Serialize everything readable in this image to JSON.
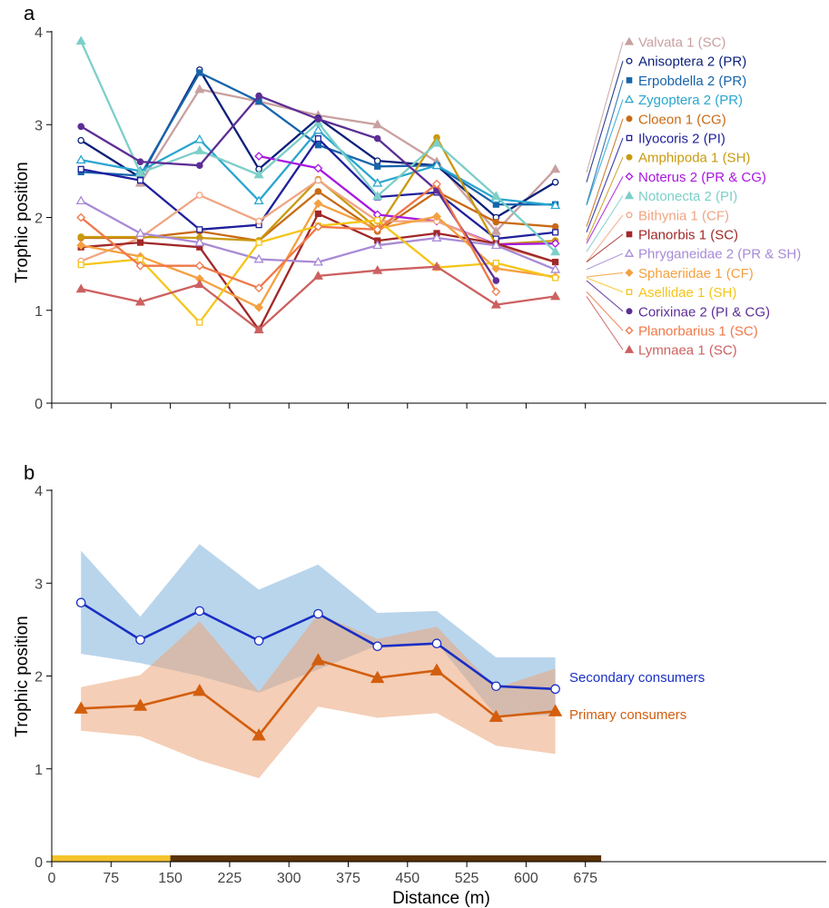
{
  "chart_data": [
    {
      "panel": "a",
      "type": "line",
      "ylabel": "Trophic position",
      "ylim": [
        0,
        4
      ],
      "yticks": [
        "0",
        "1",
        "2",
        "3",
        "4"
      ],
      "x": [
        37,
        112,
        187,
        262,
        337,
        412,
        487,
        562,
        637
      ],
      "series": [
        {
          "name": "Valvata 1 (SC)",
          "color": "#c9a0a0",
          "marker": "triangle-filled",
          "values": [
            null,
            2.37,
            3.38,
            3.25,
            3.1,
            3.0,
            2.6,
            1.85,
            2.52
          ]
        },
        {
          "name": "Anisoptera 2 (PR)",
          "color": "#0b1f7a",
          "marker": "circle-open",
          "values": [
            2.83,
            2.43,
            3.59,
            2.52,
            3.07,
            2.61,
            2.56,
            2.0,
            2.38
          ]
        },
        {
          "name": "Erpobdella 2 (PR)",
          "color": "#1764ab",
          "marker": "square-filled",
          "values": [
            2.49,
            2.45,
            3.56,
            3.25,
            2.78,
            2.55,
            2.56,
            2.14,
            2.14
          ]
        },
        {
          "name": "Zygoptera 2 (PR)",
          "color": "#2aa6cf",
          "marker": "triangle-open",
          "values": [
            2.62,
            2.5,
            2.84,
            2.18,
            2.94,
            2.37,
            2.56,
            2.2,
            2.13
          ]
        },
        {
          "name": "Cloeon 1 (CG)",
          "color": "#c86a14",
          "marker": "circle-filled",
          "values": [
            1.78,
            1.78,
            1.85,
            1.75,
            2.28,
            1.85,
            2.28,
            1.95,
            1.9
          ]
        },
        {
          "name": "Ilyocoris 2 (PI)",
          "color": "#1f1f9c",
          "marker": "square-open",
          "values": [
            2.52,
            2.4,
            1.87,
            1.92,
            2.85,
            2.22,
            2.27,
            1.77,
            1.84
          ]
        },
        {
          "name": "Amphipoda 1 (SH)",
          "color": "#c99a10",
          "marker": "circle-filled",
          "values": [
            1.79,
            1.79,
            1.78,
            1.75,
            2.41,
            1.88,
            2.86,
            1.71,
            1.75
          ]
        },
        {
          "name": "Noterus 2 (PR & CG)",
          "color": "#a818e0",
          "marker": "diamond-open",
          "values": [
            null,
            null,
            null,
            2.66,
            2.53,
            2.03,
            1.96,
            1.71,
            1.72
          ]
        },
        {
          "name": "Notonecta 2 (PI)",
          "color": "#7ccfc8",
          "marker": "triangle-filled",
          "values": [
            3.9,
            2.48,
            2.72,
            2.46,
            3.02,
            2.23,
            2.8,
            2.23,
            1.63
          ]
        },
        {
          "name": "Bithynia 1 (CF)",
          "color": "#f0a582",
          "marker": "circle-open",
          "values": [
            1.53,
            1.78,
            2.24,
            1.96,
            2.4,
            1.96,
            1.96,
            1.7,
            1.52
          ]
        },
        {
          "name": "Planorbis 1 (SC)",
          "color": "#a02828",
          "marker": "square-filled",
          "values": [
            1.68,
            1.73,
            1.68,
            0.79,
            2.04,
            1.75,
            1.83,
            1.72,
            1.52
          ]
        },
        {
          "name": "Phryganeidae 2 (PR & SH)",
          "color": "#a88ad6",
          "marker": "triangle-open",
          "values": [
            2.18,
            1.83,
            1.73,
            1.55,
            1.52,
            1.7,
            1.78,
            1.7,
            1.44
          ]
        },
        {
          "name": "Sphaeriidae 1 (CF)",
          "color": "#f5a040",
          "marker": "diamond-filled",
          "values": [
            1.7,
            1.58,
            1.34,
            1.03,
            2.15,
            1.88,
            2.01,
            1.45,
            1.36
          ]
        },
        {
          "name": "Asellidae 1 (SH)",
          "color": "#f5c518",
          "marker": "square-open",
          "values": [
            1.49,
            1.55,
            0.87,
            1.73,
            1.91,
            1.97,
            1.46,
            1.51,
            1.35
          ]
        },
        {
          "name": "Corixinae 2 (PI & CG)",
          "color": "#5d2e95",
          "marker": "circle-filled",
          "values": [
            2.98,
            2.6,
            2.56,
            3.31,
            3.06,
            2.85,
            2.29,
            1.32,
            null
          ]
        },
        {
          "name": "Planorbarius 1 (SC)",
          "color": "#f07848",
          "marker": "diamond-open",
          "values": [
            2.0,
            1.48,
            1.48,
            1.24,
            1.9,
            1.87,
            2.36,
            1.2,
            null
          ]
        },
        {
          "name": "Lymnaea 1 (SC)",
          "color": "#cd6060",
          "marker": "triangle-filled",
          "values": [
            1.23,
            1.09,
            1.28,
            0.79,
            1.37,
            1.43,
            1.47,
            1.06,
            1.15
          ]
        }
      ]
    },
    {
      "panel": "b",
      "type": "line",
      "xlabel": "Distance (m)",
      "ylabel": "Trophic position",
      "xlim": [
        0,
        1000
      ],
      "xticks": [
        "0",
        "75",
        "150",
        "225",
        "300",
        "375",
        "450",
        "525",
        "600",
        "675"
      ],
      "ylim": [
        0,
        4
      ],
      "yticks": [
        "0",
        "1",
        "2",
        "3",
        "4"
      ],
      "x": [
        37,
        112,
        187,
        262,
        337,
        412,
        487,
        562,
        637
      ],
      "series": [
        {
          "name": "Secondary consumers",
          "color": "#1a2fc4",
          "band_color": "#7fb3dc",
          "marker": "circle-open",
          "values": [
            2.79,
            2.39,
            2.7,
            2.38,
            2.67,
            2.32,
            2.35,
            1.89,
            1.86
          ],
          "lower": [
            2.24,
            2.14,
            2.0,
            1.82,
            2.07,
            2.33,
            2.36,
            1.57,
            1.58
          ],
          "upper": [
            3.35,
            2.64,
            3.42,
            2.93,
            3.2,
            2.68,
            2.7,
            2.2,
            2.2
          ]
        },
        {
          "name": "Primary consumers",
          "color": "#d35e0e",
          "band_color": "#eba67a",
          "marker": "triangle-filled",
          "values": [
            1.65,
            1.68,
            1.84,
            1.36,
            2.17,
            1.98,
            2.06,
            1.56,
            1.62
          ],
          "lower": [
            1.41,
            1.35,
            1.09,
            0.9,
            1.67,
            1.55,
            1.6,
            1.25,
            1.16
          ],
          "upper": [
            1.88,
            2.01,
            2.59,
            1.83,
            2.67,
            2.4,
            2.53,
            1.87,
            2.08
          ]
        }
      ],
      "segments": [
        {
          "range": [
            0,
            150
          ],
          "color": "#f5c42c"
        },
        {
          "range": [
            150,
            695
          ],
          "color": "#5a3206"
        }
      ]
    }
  ]
}
